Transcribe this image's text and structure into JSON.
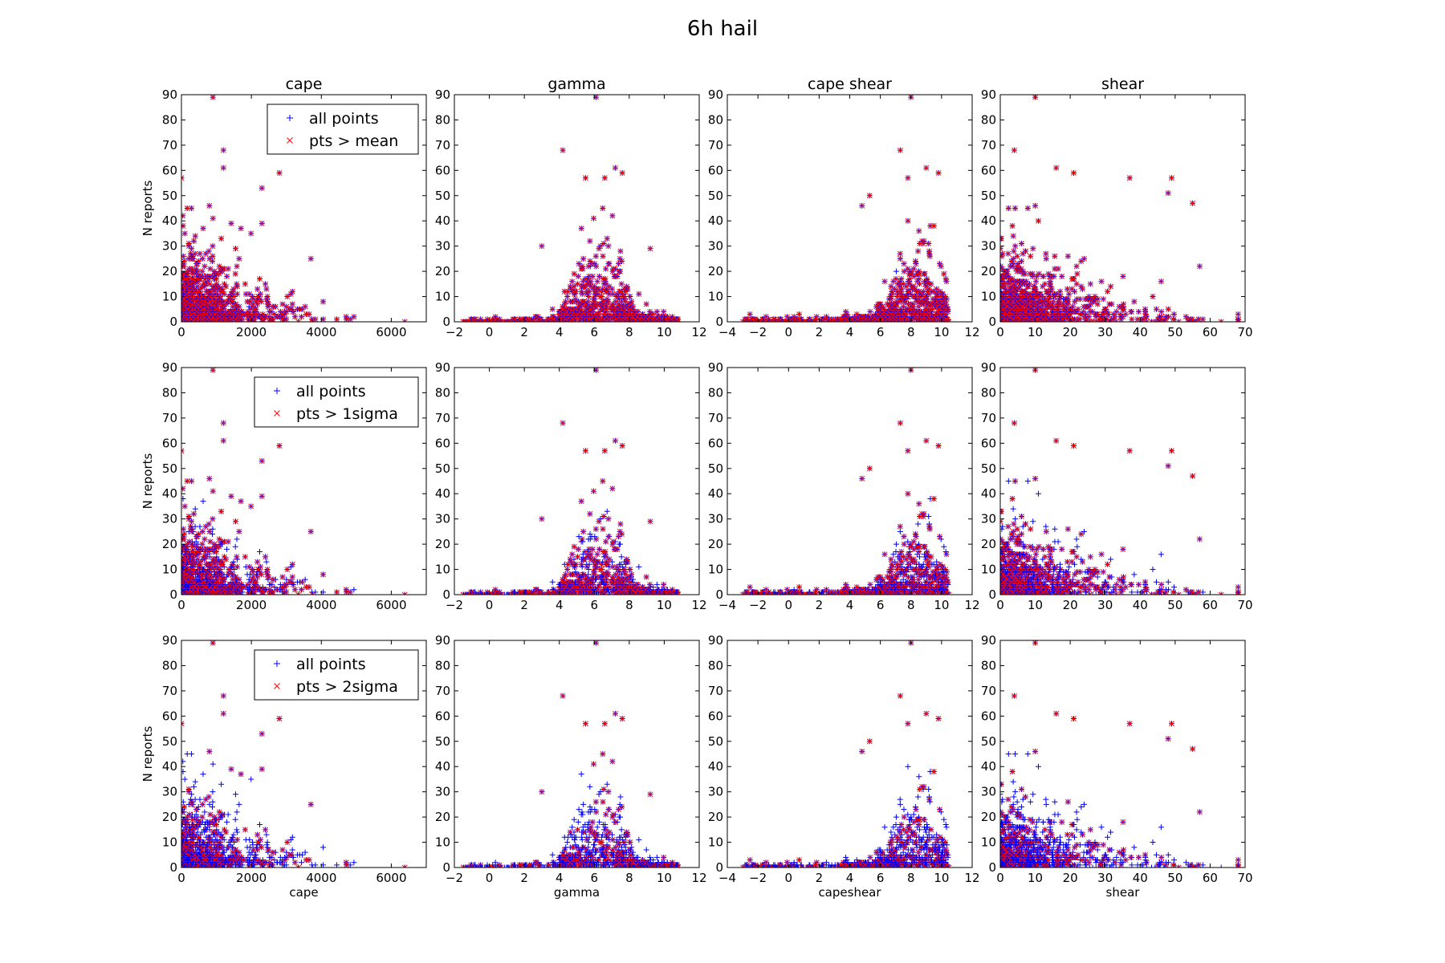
{
  "title": "6h hail",
  "colors": {
    "all_points": "#0000ff",
    "exceed_points": "#ff0000"
  },
  "chart_data": {
    "type": "scatter",
    "title": "6h hail",
    "ylabel": "N reports",
    "ylim": [
      0,
      90
    ],
    "yticks": [
      0,
      10,
      20,
      30,
      40,
      50,
      60,
      70,
      80,
      90
    ],
    "rows": [
      {
        "threshold": "mean",
        "legend": [
          "all points",
          "pts > mean"
        ],
        "legend_placement": "upper right of first column"
      },
      {
        "threshold": "1sigma",
        "legend": [
          "all points",
          "pts > 1sigma"
        ],
        "legend_placement": "upper right of first column"
      },
      {
        "threshold": "2sigma",
        "legend": [
          "all points",
          "pts > 2sigma"
        ],
        "legend_placement": "upper right of first column"
      }
    ],
    "columns": [
      {
        "variable": "cape",
        "title": "cape",
        "xlabel": "cape",
        "xlim": [
          0,
          7000
        ],
        "xticks": [
          0,
          2000,
          4000,
          6000
        ]
      },
      {
        "variable": "gamma",
        "title": "gamma",
        "xlabel": "gamma",
        "xlim": [
          -2,
          12
        ],
        "xticks": [
          -2,
          0,
          2,
          4,
          6,
          8,
          10,
          12
        ]
      },
      {
        "variable": "capeshear",
        "title": "cape shear",
        "xlabel": "capeshear",
        "xlim": [
          -4,
          12
        ],
        "xticks": [
          -4,
          -2,
          0,
          2,
          4,
          6,
          8,
          10,
          12
        ]
      },
      {
        "variable": "shear",
        "title": "shear",
        "xlabel": "shear",
        "xlim": [
          0,
          70
        ],
        "xticks": [
          0,
          10,
          20,
          30,
          40,
          50,
          60,
          70
        ]
      }
    ],
    "highlighted_points": {
      "cape": [
        [
          900,
          89
        ],
        [
          1200,
          68
        ],
        [
          1200,
          61
        ],
        [
          2800,
          59
        ],
        [
          2300,
          53
        ],
        [
          0,
          57
        ],
        [
          800,
          46
        ],
        [
          2300,
          39
        ],
        [
          3700,
          25
        ],
        [
          1700,
          37
        ]
      ],
      "gamma": [
        [
          6.1,
          89
        ],
        [
          4.2,
          68
        ],
        [
          7.2,
          61
        ],
        [
          7.6,
          59
        ],
        [
          5.5,
          57
        ],
        [
          6.6,
          57
        ],
        [
          3.0,
          30
        ],
        [
          9.2,
          29
        ]
      ],
      "capeshear": [
        [
          8.0,
          89
        ],
        [
          7.3,
          68
        ],
        [
          9.0,
          61
        ],
        [
          9.8,
          59
        ],
        [
          7.8,
          57
        ],
        [
          5.3,
          50
        ],
        [
          4.8,
          46
        ]
      ],
      "shear": [
        [
          10,
          89
        ],
        [
          4,
          68
        ],
        [
          16,
          61
        ],
        [
          21,
          59
        ],
        [
          37,
          57
        ],
        [
          49,
          57
        ],
        [
          48,
          51
        ],
        [
          10,
          46
        ],
        [
          55,
          47
        ],
        [
          57,
          22
        ]
      ]
    }
  }
}
